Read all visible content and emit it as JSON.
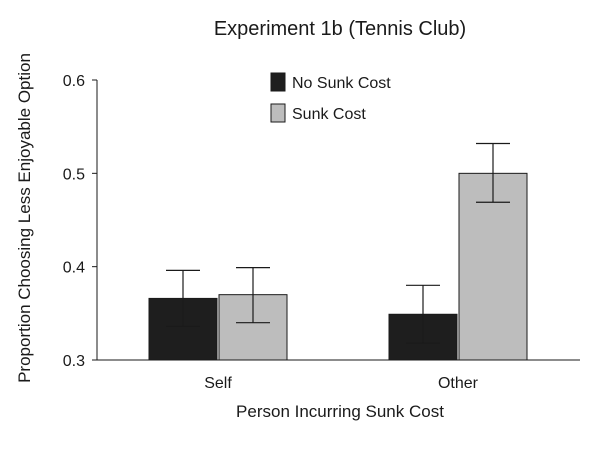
{
  "chart_data": {
    "type": "bar",
    "title": "Experiment 1b (Tennis Club)",
    "xlabel": "Person Incurring Sunk Cost",
    "ylabel": "Proportion Choosing Less Enjoyable Option",
    "ylim": [
      0.3,
      0.6
    ],
    "yticks": [
      "0.3",
      "0.4",
      "0.5",
      "0.6"
    ],
    "categories": [
      "Self",
      "Other"
    ],
    "series": [
      {
        "name": "No Sunk Cost",
        "values": [
          0.366,
          0.349
        ],
        "err_low": [
          0.336,
          0.318
        ],
        "err_high": [
          0.396,
          0.38
        ],
        "color": "#1e1e1e"
      },
      {
        "name": "Sunk Cost",
        "values": [
          0.37,
          0.5
        ],
        "err_low": [
          0.34,
          0.469
        ],
        "err_high": [
          0.399,
          0.532
        ],
        "color": "#bdbdbd"
      }
    ],
    "legend_position": "top-center",
    "grid": false
  }
}
